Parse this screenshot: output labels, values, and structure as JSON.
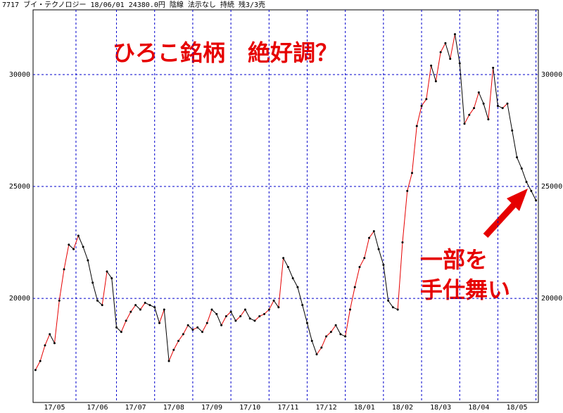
{
  "chart_data": {
    "type": "line",
    "subtitle": "7717 ブイ・テクノロジー 18/06/01 24380.0円 陰線 法示なし    持続    残3/3売",
    "title": "ひろこ銘柄　絶好調？",
    "annotations": [
      "一部を",
      "手仕舞い"
    ],
    "categories": [
      null,
      null,
      null,
      null,
      "17/05",
      null,
      null,
      null,
      null,
      null,
      null,
      null,
      null,
      "17/06",
      null,
      null,
      null,
      null,
      null,
      null,
      null,
      "17/07",
      null,
      null,
      null,
      null,
      null,
      null,
      null,
      "17/08",
      null,
      null,
      null,
      null,
      null,
      null,
      null,
      "17/09",
      null,
      null,
      null,
      null,
      null,
      null,
      null,
      "17/10",
      null,
      null,
      null,
      null,
      null,
      null,
      null,
      "17/11",
      null,
      null,
      null,
      null,
      null,
      null,
      null,
      "17/12",
      null,
      null,
      null,
      null,
      null,
      null,
      null,
      "18/01",
      null,
      null,
      null,
      null,
      null,
      null,
      null,
      "18/02",
      null,
      null,
      null,
      null,
      null,
      null,
      null,
      "18/03",
      null,
      null,
      null,
      null,
      null,
      null,
      null,
      "18/04",
      null,
      null,
      null,
      null,
      null,
      null,
      null,
      "18/05",
      null,
      null,
      null,
      null
    ],
    "values": [
      16800,
      17200,
      17900,
      18400,
      18000,
      19900,
      21300,
      22400,
      22200,
      22800,
      22300,
      21700,
      20700,
      19900,
      19700,
      21200,
      20900,
      18700,
      18500,
      19000,
      19400,
      19700,
      19500,
      19800,
      19700,
      19600,
      18900,
      19500,
      17200,
      17700,
      18100,
      18400,
      18800,
      18600,
      18700,
      18500,
      18900,
      19500,
      19300,
      18800,
      19200,
      19400,
      19000,
      19200,
      19500,
      19100,
      19000,
      19200,
      19300,
      19500,
      19900,
      19600,
      21800,
      21400,
      20900,
      20500,
      19700,
      18900,
      18100,
      17500,
      17800,
      18300,
      18500,
      18800,
      18400,
      18300,
      19500,
      20500,
      21400,
      21800,
      22700,
      23000,
      22200,
      21500,
      19900,
      19600,
      19500,
      22500,
      24800,
      25600,
      27700,
      28600,
      28900,
      30400,
      29700,
      31000,
      31400,
      30700,
      31800,
      30500,
      27800,
      28200,
      28500,
      29200,
      28700,
      28000,
      30300,
      28600,
      28500,
      28700,
      27500,
      26300,
      25800,
      25200,
      24800,
      24380
    ],
    "up_color": "#e60000",
    "down_color": "#000000",
    "ylim": [
      15350,
      32890
    ],
    "yticks": [
      20000,
      25000,
      30000
    ],
    "grid": true
  }
}
